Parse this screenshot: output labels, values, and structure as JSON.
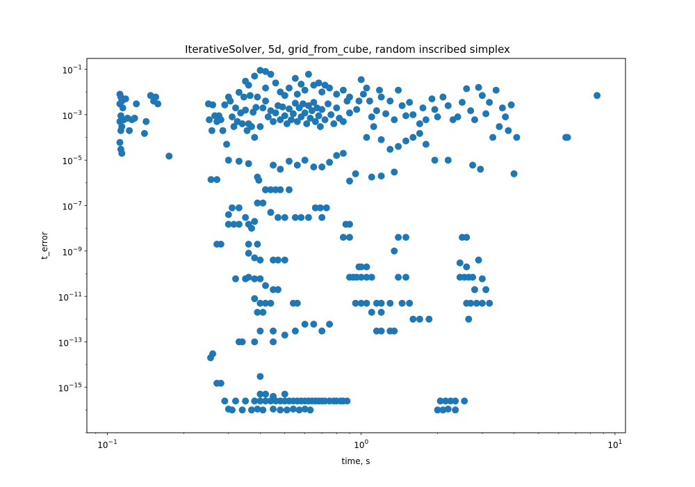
{
  "chart_data": {
    "type": "scatter",
    "title": "IterativeSolver, 5d, grid_from_cube, random inscribed simplex",
    "xlabel": "time, s",
    "ylabel": "t_error",
    "xscale": "log",
    "yscale": "log",
    "xlim": [
      0.083,
      11.0
    ],
    "ylim": [
      1e-17,
      0.3
    ],
    "grid": false,
    "legend": "none",
    "marker_color": "#1f77b4",
    "x_ticks": [
      {
        "value": 0.1,
        "base": "10",
        "exp": "−1"
      },
      {
        "value": 1,
        "base": "10",
        "exp": "0"
      },
      {
        "value": 10,
        "base": "10",
        "exp": "1"
      }
    ],
    "y_ticks": [
      {
        "value": 1e-15,
        "base": "10",
        "exp": "−15"
      },
      {
        "value": 1e-13,
        "base": "10",
        "exp": "−13"
      },
      {
        "value": 1e-11,
        "base": "10",
        "exp": "−11"
      },
      {
        "value": 1e-09,
        "base": "10",
        "exp": "−9"
      },
      {
        "value": 1e-07,
        "base": "10",
        "exp": "−7"
      },
      {
        "value": 1e-05,
        "base": "10",
        "exp": "−5"
      },
      {
        "value": 0.001,
        "base": "10",
        "exp": "−3"
      },
      {
        "value": 0.1,
        "base": "10",
        "exp": "−1"
      }
    ],
    "points": [
      [
        0.112,
        0.008
      ],
      [
        0.113,
        0.006
      ],
      [
        0.114,
        0.004
      ],
      [
        0.112,
        0.003
      ],
      [
        0.115,
        0.002
      ],
      [
        0.113,
        0.0009
      ],
      [
        0.112,
        0.0005
      ],
      [
        0.114,
        0.0003
      ],
      [
        0.113,
        0.0002
      ],
      [
        0.112,
        6e-05
      ],
      [
        0.113,
        3e-05
      ],
      [
        0.114,
        2e-05
      ],
      [
        0.116,
        0.0006
      ],
      [
        0.118,
        0.005
      ],
      [
        0.12,
        0.0007
      ],
      [
        0.122,
        0.0002
      ],
      [
        0.125,
        0.0006
      ],
      [
        0.128,
        0.0007
      ],
      [
        0.13,
        0.003
      ],
      [
        0.14,
        0.00015
      ],
      [
        0.142,
        0.0005
      ],
      [
        0.148,
        0.007
      ],
      [
        0.152,
        0.004
      ],
      [
        0.155,
        0.006
      ],
      [
        0.158,
        0.003
      ],
      [
        0.175,
        1.5e-05
      ],
      [
        0.25,
        0.003
      ],
      [
        0.252,
        0.0006
      ],
      [
        0.258,
        0.0002
      ],
      [
        0.26,
        0.0027
      ],
      [
        0.265,
        0.0009
      ],
      [
        0.27,
        0.0005
      ],
      [
        0.275,
        0.0009
      ],
      [
        0.28,
        0.0006
      ],
      [
        0.285,
        0.0002
      ],
      [
        0.29,
        0.0027
      ],
      [
        0.295,
        5e-05
      ],
      [
        0.3,
        0.006
      ],
      [
        0.305,
        0.004
      ],
      [
        0.31,
        0.0008
      ],
      [
        0.315,
        0.0003
      ],
      [
        0.32,
        0.002
      ],
      [
        0.325,
        0.0005
      ],
      [
        0.33,
        0.0097
      ],
      [
        0.335,
        0.0012
      ],
      [
        0.34,
        0.0004
      ],
      [
        0.345,
        0.006
      ],
      [
        0.35,
        0.0016
      ],
      [
        0.355,
        0.0002
      ],
      [
        0.36,
        0.0004
      ],
      [
        0.365,
        0.007
      ],
      [
        0.37,
        0.0003
      ],
      [
        0.375,
        0.0013
      ],
      [
        0.38,
        0.0001
      ],
      [
        0.385,
        0.0021
      ],
      [
        0.39,
        0.006
      ],
      [
        0.4,
        0.0003
      ],
      [
        0.41,
        0.002
      ],
      [
        0.42,
        0.004
      ],
      [
        0.43,
        0.0008
      ],
      [
        0.44,
        0.0015
      ],
      [
        0.45,
        0.0005
      ],
      [
        0.46,
        0.0012
      ],
      [
        0.47,
        0.0025
      ],
      [
        0.48,
        0.0006
      ],
      [
        0.49,
        0.0022
      ],
      [
        0.5,
        0.0009
      ],
      [
        0.51,
        0.0004
      ],
      [
        0.52,
        0.0018
      ],
      [
        0.53,
        0.0006
      ],
      [
        0.54,
        0.0011
      ],
      [
        0.55,
        0.0032
      ],
      [
        0.56,
        0.0005
      ],
      [
        0.57,
        0.002
      ],
      [
        0.58,
        0.0008
      ],
      [
        0.59,
        0.003
      ],
      [
        0.6,
        0.0012
      ],
      [
        0.61,
        0.0004
      ],
      [
        0.62,
        0.0025
      ],
      [
        0.63,
        0.0007
      ],
      [
        0.64,
        0.0015
      ],
      [
        0.65,
        0.0035
      ],
      [
        0.66,
        0.0005
      ],
      [
        0.67,
        0.002
      ],
      [
        0.68,
        0.0009
      ],
      [
        0.69,
        0.0003
      ],
      [
        0.7,
        0.0017
      ],
      [
        0.72,
        0.0006
      ],
      [
        0.74,
        0.003
      ],
      [
        0.76,
        0.001
      ],
      [
        0.78,
        0.0004
      ],
      [
        0.8,
        0.002
      ],
      [
        0.82,
        0.0007
      ],
      [
        0.85,
        0.0005
      ],
      [
        0.88,
        0.004
      ],
      [
        0.9,
        0.0012
      ],
      [
        0.4,
        0.09
      ],
      [
        0.42,
        0.08
      ],
      [
        0.44,
        0.06
      ],
      [
        0.38,
        0.05
      ],
      [
        0.35,
        0.03
      ],
      [
        0.62,
        0.06
      ],
      [
        0.55,
        0.04
      ],
      [
        0.36,
        0.02
      ],
      [
        0.46,
        0.025
      ],
      [
        0.52,
        0.015
      ],
      [
        0.6,
        0.012
      ],
      [
        0.65,
        0.02
      ],
      [
        0.7,
        0.01
      ],
      [
        0.75,
        0.015
      ],
      [
        0.8,
        0.008
      ],
      [
        0.85,
        0.012
      ],
      [
        0.9,
        0.006
      ],
      [
        0.48,
        0.01
      ],
      [
        0.42,
        0.015
      ],
      [
        0.56,
        0.008
      ],
      [
        0.68,
        0.025
      ],
      [
        0.72,
        0.02
      ],
      [
        0.58,
        0.022
      ],
      [
        0.5,
        0.007
      ],
      [
        0.96,
        0.0017
      ],
      [
        0.98,
        0.004
      ],
      [
        1.0,
        0.035
      ],
      [
        1.02,
        0.008
      ],
      [
        1.05,
        0.015
      ],
      [
        1.08,
        0.004
      ],
      [
        1.1,
        0.0008
      ],
      [
        1.12,
        0.0003
      ],
      [
        1.15,
        0.0015
      ],
      [
        1.18,
        0.012
      ],
      [
        1.2,
        0.006
      ],
      [
        1.25,
        0.0011
      ],
      [
        1.3,
        0.004
      ],
      [
        1.35,
        0.0006
      ],
      [
        1.4,
        0.012
      ],
      [
        1.45,
        0.0025
      ],
      [
        1.5,
        0.0009
      ],
      [
        1.55,
        0.0035
      ],
      [
        1.6,
        0.001
      ],
      [
        1.7,
        0.0004
      ],
      [
        1.75,
        0.002
      ],
      [
        1.8,
        0.0006
      ],
      [
        1.9,
        0.005
      ],
      [
        1.95,
        0.0017
      ],
      [
        2.0,
        0.0008
      ],
      [
        2.1,
        0.006
      ],
      [
        2.2,
        0.0025
      ],
      [
        2.3,
        0.0006
      ],
      [
        2.4,
        0.0008
      ],
      [
        2.5,
        0.0035
      ],
      [
        2.6,
        0.014
      ],
      [
        2.7,
        0.0015
      ],
      [
        2.8,
        0.0006
      ],
      [
        2.9,
        0.016
      ],
      [
        3.0,
        0.007
      ],
      [
        3.1,
        0.0011
      ],
      [
        3.2,
        0.0035
      ],
      [
        3.3,
        0.0001
      ],
      [
        3.4,
        0.012
      ],
      [
        3.5,
        0.0003
      ],
      [
        3.6,
        0.002
      ],
      [
        3.7,
        0.0008
      ],
      [
        3.8,
        0.0002
      ],
      [
        3.9,
        0.0027
      ],
      [
        4.1,
        0.0001
      ],
      [
        6.4,
        0.0001
      ],
      [
        6.5,
        0.0001
      ],
      [
        8.5,
        0.007
      ],
      [
        1.05,
        0.0001
      ],
      [
        1.2,
        8e-05
      ],
      [
        1.3,
        3e-05
      ],
      [
        1.4,
        4e-05
      ],
      [
        1.5,
        7e-05
      ],
      [
        1.6,
        0.0001
      ],
      [
        1.7,
        0.00015
      ],
      [
        1.8,
        5e-05
      ],
      [
        0.3,
        1e-05
      ],
      [
        0.33,
        9e-06
      ],
      [
        0.36,
        7e-06
      ],
      [
        0.39,
        1.8e-06
      ],
      [
        0.42,
        5e-07
      ],
      [
        0.45,
        6e-06
      ],
      [
        0.48,
        4e-06
      ],
      [
        0.52,
        9e-06
      ],
      [
        0.56,
        6e-06
      ],
      [
        0.6,
        1e-05
      ],
      [
        0.65,
        5e-06
      ],
      [
        0.7,
        5e-06
      ],
      [
        0.75,
        8e-06
      ],
      [
        0.8,
        1.6e-05
      ],
      [
        0.85,
        2e-05
      ],
      [
        0.9,
        1.2e-06
      ],
      [
        0.95,
        2.5e-06
      ],
      [
        1.1,
        1.8e-06
      ],
      [
        1.2,
        2e-06
      ],
      [
        1.35,
        3e-06
      ],
      [
        0.256,
        1.4e-06
      ],
      [
        0.27,
        1.4e-06
      ],
      [
        0.395,
        1.3e-06
      ],
      [
        0.42,
        5e-07
      ],
      [
        0.44,
        5e-07
      ],
      [
        0.46,
        5e-07
      ],
      [
        0.48,
        5e-07
      ],
      [
        0.52,
        5e-07
      ],
      [
        1.95,
        1e-05
      ],
      [
        2.2,
        1e-05
      ],
      [
        2.75,
        6e-06
      ],
      [
        2.95,
        4e-06
      ],
      [
        4.0,
        2.5e-06
      ],
      [
        0.3,
        4e-08
      ],
      [
        0.31,
        8e-08
      ],
      [
        0.33,
        8e-08
      ],
      [
        0.35,
        3e-08
      ],
      [
        0.37,
        1e-08
      ],
      [
        0.39,
        1.3e-07
      ],
      [
        0.41,
        1.3e-07
      ],
      [
        0.44,
        5e-08
      ],
      [
        0.47,
        3e-08
      ],
      [
        0.5,
        3e-08
      ],
      [
        0.55,
        3e-08
      ],
      [
        0.58,
        3e-08
      ],
      [
        0.62,
        3e-08
      ],
      [
        0.66,
        8e-08
      ],
      [
        0.69,
        8e-08
      ],
      [
        0.7,
        3e-08
      ],
      [
        0.73,
        8e-08
      ],
      [
        0.33,
        1.5e-08
      ],
      [
        0.36,
        1.5e-08
      ],
      [
        0.38,
        2e-08
      ],
      [
        0.3,
        1.5e-08
      ],
      [
        0.315,
        1.5e-08
      ],
      [
        0.27,
        2e-09
      ],
      [
        0.28,
        2e-09
      ],
      [
        0.36,
        2e-09
      ],
      [
        0.39,
        2e-09
      ],
      [
        0.36,
        8e-10
      ],
      [
        0.38,
        5e-10
      ],
      [
        0.4,
        4e-10
      ],
      [
        0.45,
        4e-10
      ],
      [
        0.5,
        4e-10
      ],
      [
        0.47,
        4e-10
      ],
      [
        0.87,
        1.5e-08
      ],
      [
        0.9,
        1.5e-08
      ],
      [
        0.85,
        4e-09
      ],
      [
        0.9,
        4e-09
      ],
      [
        0.98,
        2e-10
      ],
      [
        1.0,
        2e-10
      ],
      [
        1.05,
        2e-10
      ],
      [
        1.35,
        1e-09
      ],
      [
        1.4,
        4e-09
      ],
      [
        1.5,
        4e-09
      ],
      [
        2.5,
        4e-09
      ],
      [
        2.6,
        4e-09
      ],
      [
        2.45,
        3e-10
      ],
      [
        2.6,
        2e-10
      ],
      [
        2.9,
        4e-10
      ],
      [
        0.32,
        6e-11
      ],
      [
        0.35,
        6e-11
      ],
      [
        0.38,
        6e-11
      ],
      [
        0.4,
        6e-11
      ],
      [
        0.45,
        2e-11
      ],
      [
        0.47,
        2e-11
      ],
      [
        0.36,
        7e-11
      ],
      [
        0.42,
        3e-11
      ],
      [
        0.9,
        7e-11
      ],
      [
        0.93,
        7e-11
      ],
      [
        0.96,
        7e-11
      ],
      [
        1.0,
        7e-11
      ],
      [
        1.05,
        7e-11
      ],
      [
        1.1,
        7e-11
      ],
      [
        1.4,
        7e-11
      ],
      [
        1.5,
        7e-11
      ],
      [
        2.45,
        7e-11
      ],
      [
        2.55,
        7e-11
      ],
      [
        2.65,
        7e-11
      ],
      [
        2.75,
        7e-11
      ],
      [
        3.0,
        6e-11
      ],
      [
        2.8,
        2e-11
      ],
      [
        3.1,
        2e-11
      ],
      [
        0.38,
        8e-12
      ],
      [
        0.4,
        5e-12
      ],
      [
        0.42,
        5e-12
      ],
      [
        0.44,
        5e-12
      ],
      [
        0.54,
        5e-12
      ],
      [
        0.56,
        5e-12
      ],
      [
        0.39,
        2e-12
      ],
      [
        0.41,
        2e-12
      ],
      [
        0.95,
        5e-12
      ],
      [
        1.0,
        5e-12
      ],
      [
        1.05,
        5e-12
      ],
      [
        1.15,
        5e-12
      ],
      [
        1.2,
        5e-12
      ],
      [
        1.3,
        5e-12
      ],
      [
        1.45,
        5e-12
      ],
      [
        1.55,
        5e-12
      ],
      [
        1.1,
        2e-12
      ],
      [
        1.2,
        2e-12
      ],
      [
        1.6,
        1e-12
      ],
      [
        1.7,
        1e-12
      ],
      [
        1.85,
        1e-12
      ],
      [
        2.6,
        5e-12
      ],
      [
        2.7,
        5e-12
      ],
      [
        2.85,
        5e-12
      ],
      [
        3.0,
        5e-12
      ],
      [
        3.2,
        5e-12
      ],
      [
        2.65,
        1e-12
      ],
      [
        0.4,
        3e-13
      ],
      [
        0.45,
        3e-13
      ],
      [
        0.5,
        2e-13
      ],
      [
        0.55,
        3e-13
      ],
      [
        0.6,
        6e-13
      ],
      [
        0.65,
        6e-13
      ],
      [
        0.7,
        3e-13
      ],
      [
        0.75,
        6e-13
      ],
      [
        1.15,
        3e-13
      ],
      [
        1.2,
        3e-13
      ],
      [
        1.3,
        3e-13
      ],
      [
        1.35,
        3e-13
      ],
      [
        0.33,
        1e-13
      ],
      [
        0.34,
        1e-13
      ],
      [
        0.38,
        1e-13
      ],
      [
        0.45,
        1e-13
      ],
      [
        0.255,
        2e-14
      ],
      [
        0.26,
        3e-14
      ],
      [
        0.27,
        1.5e-15
      ],
      [
        0.28,
        1.5e-15
      ],
      [
        0.4,
        3e-15
      ],
      [
        0.29,
        2.5e-16
      ],
      [
        0.32,
        2.5e-16
      ],
      [
        0.35,
        2.5e-16
      ],
      [
        0.38,
        2.5e-16
      ],
      [
        0.4,
        2.5e-16
      ],
      [
        0.42,
        2.5e-16
      ],
      [
        0.44,
        2.5e-16
      ],
      [
        0.46,
        2.5e-16
      ],
      [
        0.48,
        2.5e-16
      ],
      [
        0.5,
        2.5e-16
      ],
      [
        0.52,
        2.5e-16
      ],
      [
        0.54,
        2.5e-16
      ],
      [
        0.56,
        2.5e-16
      ],
      [
        0.58,
        2.5e-16
      ],
      [
        0.6,
        2.5e-16
      ],
      [
        0.62,
        2.5e-16
      ],
      [
        0.64,
        2.5e-16
      ],
      [
        0.66,
        2.5e-16
      ],
      [
        0.68,
        2.5e-16
      ],
      [
        0.7,
        2.5e-16
      ],
      [
        0.72,
        2.5e-16
      ],
      [
        0.75,
        2.5e-16
      ],
      [
        0.78,
        2.5e-16
      ],
      [
        0.8,
        2.5e-16
      ],
      [
        0.83,
        2.5e-16
      ],
      [
        0.85,
        2.5e-16
      ],
      [
        0.88,
        2.5e-16
      ],
      [
        0.3,
        1.1e-16
      ],
      [
        0.31,
        1e-16
      ],
      [
        0.34,
        1e-16
      ],
      [
        0.37,
        1e-16
      ],
      [
        0.39,
        1.1e-16
      ],
      [
        0.41,
        1e-16
      ],
      [
        0.45,
        1.1e-16
      ],
      [
        0.48,
        1e-16
      ],
      [
        0.51,
        1e-16
      ],
      [
        0.54,
        1.1e-16
      ],
      [
        0.57,
        1e-16
      ],
      [
        0.6,
        1.1e-16
      ],
      [
        0.63,
        1e-16
      ],
      [
        0.4,
        5e-16
      ],
      [
        0.42,
        5e-16
      ],
      [
        0.45,
        4e-16
      ],
      [
        0.5,
        5e-16
      ],
      [
        2.05,
        2.5e-16
      ],
      [
        2.15,
        2.5e-16
      ],
      [
        2.25,
        2.5e-16
      ],
      [
        2.35,
        2.5e-16
      ],
      [
        2.55,
        2.5e-16
      ],
      [
        2.0,
        1e-16
      ],
      [
        2.1,
        1e-16
      ],
      [
        2.2,
        1.1e-16
      ],
      [
        2.35,
        1e-16
      ]
    ]
  }
}
